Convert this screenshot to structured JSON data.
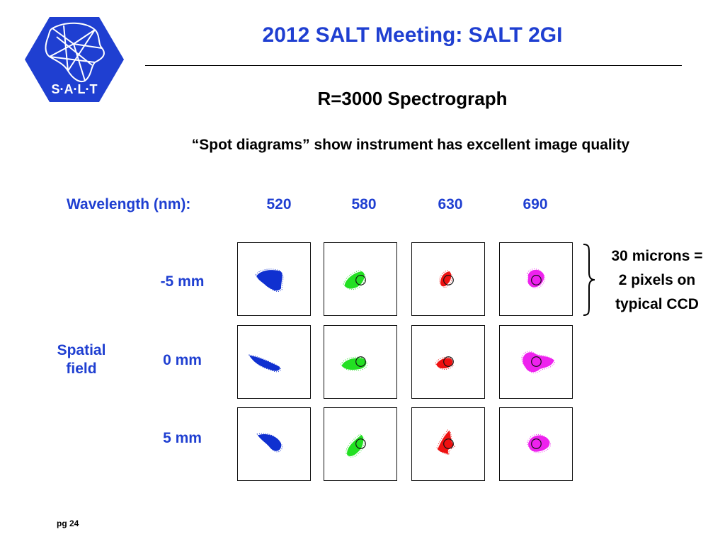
{
  "header": {
    "logo_text": "S·A·L·T",
    "title": "2012 SALT Meeting: SALT 2GI"
  },
  "subtitle": "R=3000 Spectrograph",
  "tagline": "“Spot diagrams” show instrument has excellent image quality",
  "grid": {
    "wavelength_label": "Wavelength (nm):",
    "wavelengths": [
      "520",
      "580",
      "630",
      "690"
    ],
    "spatial_label_line1": "Spatial",
    "spatial_label_line2": "field",
    "rows": [
      "-5 mm",
      "0 mm",
      "5 mm"
    ],
    "colors": [
      "#1030d0",
      "#22e022",
      "#ee1111",
      "#ee22ee"
    ]
  },
  "note": {
    "line1": "30 microns =",
    "line2": "2 pixels on",
    "line3": "typical CCD"
  },
  "footer": {
    "page": "pg 24"
  }
}
